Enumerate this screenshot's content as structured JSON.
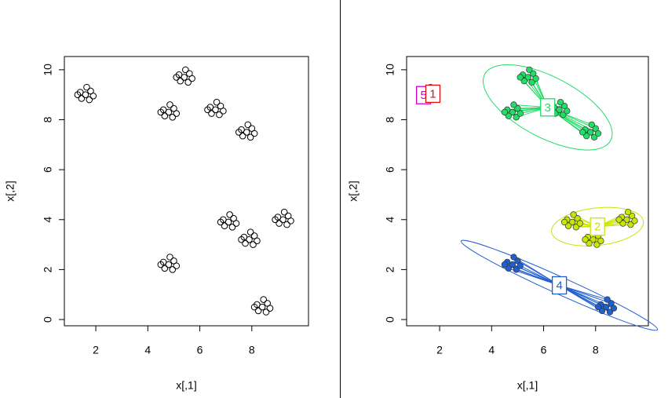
{
  "chart_data": [
    {
      "type": "scatter",
      "x_label": "x[,1]",
      "y_label": "x[,2]",
      "color": "#000000",
      "x": [
        1.6,
        1.8,
        1.4,
        1.75,
        1.45,
        1.9,
        1.3,
        1.65,
        5.4,
        5.6,
        5.2,
        5.55,
        5.25,
        5.7,
        5.1,
        5.45,
        4.8,
        5.0,
        4.6,
        4.95,
        4.65,
        5.1,
        4.5,
        4.85,
        6.6,
        6.8,
        6.4,
        6.75,
        6.45,
        6.9,
        6.3,
        6.65,
        7.8,
        8.0,
        7.6,
        7.95,
        7.65,
        8.1,
        7.5,
        7.85,
        7.1,
        7.3,
        6.9,
        7.25,
        6.95,
        7.4,
        6.8,
        7.15,
        9.2,
        9.4,
        9.0,
        9.35,
        9.05,
        9.5,
        8.9,
        9.25,
        7.9,
        8.1,
        7.7,
        8.05,
        7.75,
        8.2,
        7.6,
        7.95,
        4.8,
        5.0,
        4.6,
        4.95,
        4.65,
        5.1,
        4.5,
        4.85,
        8.4,
        8.6,
        8.2,
        8.55,
        8.25,
        8.7,
        8.1,
        8.45
      ],
      "y": [
        9.0,
        9.15,
        9.1,
        8.8,
        8.85,
        8.95,
        9.0,
        9.3,
        9.7,
        9.85,
        9.8,
        9.5,
        9.55,
        9.65,
        9.7,
        10.0,
        8.3,
        8.45,
        8.4,
        8.1,
        8.15,
        8.25,
        8.3,
        8.6,
        8.4,
        8.55,
        8.5,
        8.2,
        8.25,
        8.35,
        8.4,
        8.7,
        7.5,
        7.65,
        7.6,
        7.3,
        7.35,
        7.45,
        7.5,
        7.8,
        3.9,
        4.05,
        4.0,
        3.7,
        3.75,
        3.85,
        3.9,
        4.2,
        4.0,
        4.15,
        4.1,
        3.8,
        3.85,
        3.95,
        4.0,
        4.3,
        3.2,
        3.35,
        3.3,
        3.0,
        3.05,
        3.15,
        3.2,
        3.5,
        2.2,
        2.35,
        2.3,
        2.0,
        2.05,
        2.15,
        2.2,
        2.5,
        0.5,
        0.65,
        0.6,
        0.3,
        0.35,
        0.45,
        0.5,
        0.8
      ],
      "xlim": [
        0.79,
        10.18
      ],
      "ylim": [
        -0.25,
        10.53
      ],
      "xticks": [
        2,
        4,
        6,
        8
      ],
      "yticks": [
        0,
        2,
        4,
        6,
        8,
        10
      ]
    },
    {
      "type": "scatter",
      "x_label": "x[,1]",
      "y_label": "x[,2]",
      "series": [
        {
          "name": "5",
          "color": "#cc00cc",
          "x": [
            1.4,
            1.45,
            1.3
          ],
          "y": [
            9.1,
            8.85,
            9.0
          ]
        },
        {
          "name": "1",
          "color": "#dd1111",
          "x": [
            1.6,
            1.8,
            1.75,
            1.9,
            1.65
          ],
          "y": [
            9.0,
            9.15,
            8.8,
            8.95,
            9.3
          ]
        },
        {
          "name": "3",
          "color": "#22dd66",
          "x": [
            5.4,
            5.6,
            5.2,
            5.55,
            5.25,
            5.7,
            5.1,
            5.45,
            4.8,
            5.0,
            4.6,
            4.95,
            4.65,
            5.1,
            4.5,
            4.85,
            6.6,
            6.8,
            6.4,
            6.75,
            6.45,
            6.9,
            6.3,
            6.65,
            7.8,
            8.0,
            7.6,
            7.95,
            7.65,
            8.1,
            7.5,
            7.85
          ],
          "y": [
            9.7,
            9.85,
            9.8,
            9.5,
            9.55,
            9.65,
            9.7,
            10.0,
            8.3,
            8.45,
            8.4,
            8.1,
            8.15,
            8.25,
            8.3,
            8.6,
            8.4,
            8.55,
            8.5,
            8.2,
            8.25,
            8.35,
            8.4,
            8.7,
            7.5,
            7.65,
            7.6,
            7.3,
            7.35,
            7.45,
            7.5,
            7.8
          ]
        },
        {
          "name": "2",
          "color": "#c8e600",
          "x": [
            7.1,
            7.3,
            6.9,
            7.25,
            6.95,
            7.4,
            6.8,
            7.15,
            9.2,
            9.4,
            9.0,
            9.35,
            9.05,
            9.5,
            8.9,
            9.25,
            7.9,
            8.1,
            7.7,
            8.05,
            7.75,
            8.2,
            7.6,
            7.95
          ],
          "y": [
            3.9,
            4.05,
            4.0,
            3.7,
            3.75,
            3.85,
            3.9,
            4.2,
            4.0,
            4.15,
            4.1,
            3.8,
            3.85,
            3.95,
            4.0,
            4.3,
            3.2,
            3.35,
            3.3,
            3.0,
            3.05,
            3.15,
            3.2,
            3.5
          ]
        },
        {
          "name": "4",
          "color": "#1f5fd0",
          "x": [
            4.8,
            5.0,
            4.6,
            4.95,
            4.65,
            5.1,
            4.5,
            4.85,
            8.4,
            8.6,
            8.2,
            8.55,
            8.25,
            8.7,
            8.1,
            8.45
          ],
          "y": [
            2.2,
            2.35,
            2.3,
            2.0,
            2.05,
            2.15,
            2.2,
            2.5,
            0.5,
            0.65,
            0.6,
            0.3,
            0.35,
            0.45,
            0.5,
            0.8
          ]
        }
      ],
      "xlim": [
        0.73,
        10.03
      ],
      "ylim": [
        -0.25,
        10.53
      ],
      "xticks": [
        2,
        4,
        6,
        8
      ],
      "yticks": [
        0,
        2,
        4,
        6,
        8,
        10
      ]
    }
  ]
}
